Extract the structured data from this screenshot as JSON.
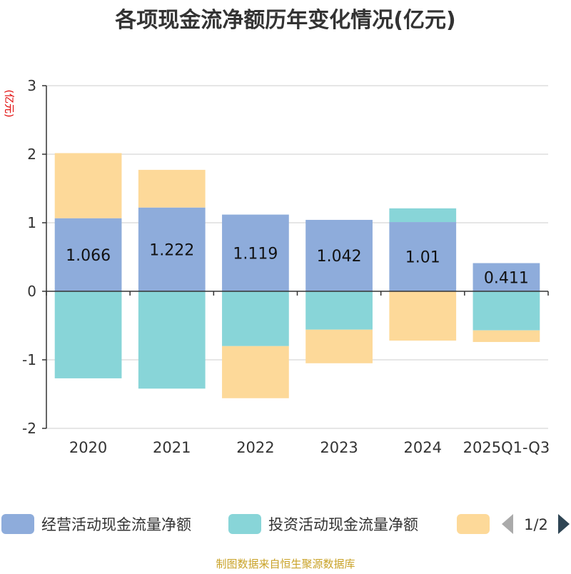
{
  "chart_data": {
    "type": "bar",
    "stacked": true,
    "title": "各项现金流净额历年变化情况(亿元)",
    "ylabel": "(亿元)",
    "xlabel": "",
    "ylim": [
      -2,
      3
    ],
    "yticks": [
      -2,
      -1,
      0,
      1,
      2,
      3
    ],
    "grid": true,
    "categories": [
      "2020",
      "2021",
      "2022",
      "2023",
      "2024",
      "2025Q1-Q3"
    ],
    "series": [
      {
        "name": "经营活动现金流量净额",
        "color": "#8eacdb",
        "values": [
          1.066,
          1.222,
          1.119,
          1.042,
          1.01,
          0.411
        ],
        "labels": [
          "1.066",
          "1.222",
          "1.119",
          "1.042",
          "1.01",
          "0.411"
        ]
      },
      {
        "name": "投资活动现金流量净额",
        "color": "#88d5d8",
        "values": [
          -1.27,
          -1.42,
          -0.8,
          -0.56,
          0.2,
          -0.57
        ]
      },
      {
        "name": "",
        "color": "#fdd999",
        "values": [
          0.95,
          0.55,
          -0.76,
          -0.49,
          -0.72,
          -0.17
        ]
      }
    ],
    "legend": {
      "position": "bottom",
      "page_indicator": "1/2"
    },
    "source": "制图数据来自恒生聚源数据库"
  }
}
